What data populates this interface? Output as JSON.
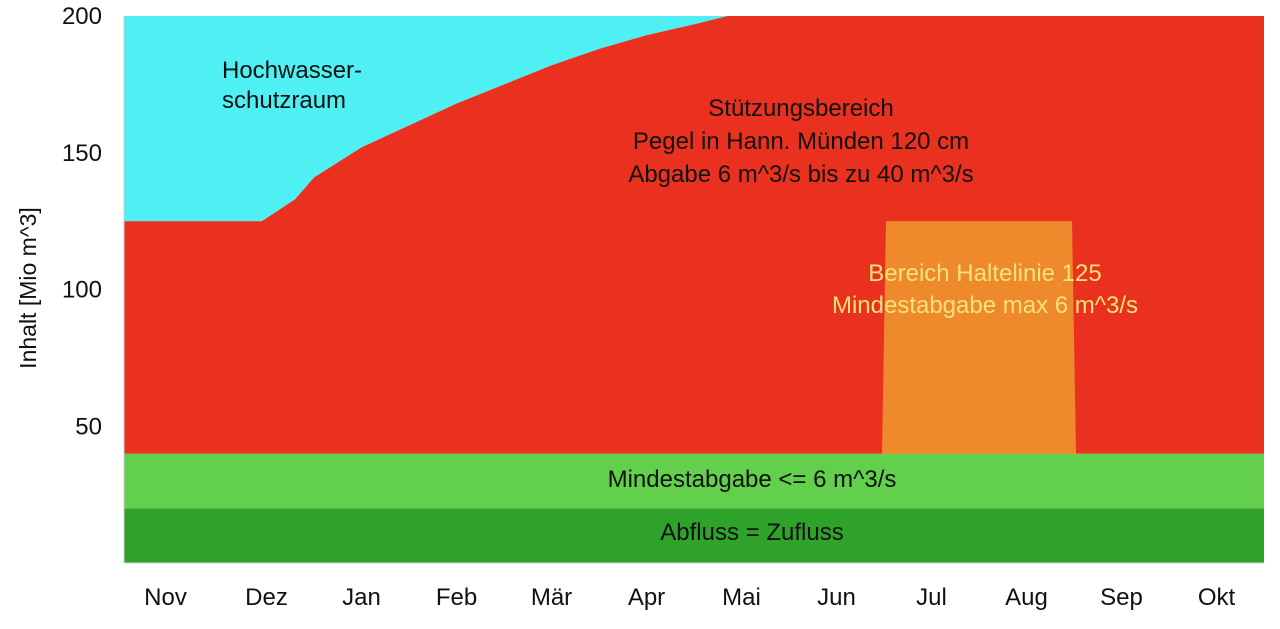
{
  "chart_data": {
    "type": "area",
    "ylabel": "Inhalt [Mio m^3]",
    "xlabel": "",
    "ylim": [
      0,
      200
    ],
    "y_ticks": [
      "50",
      "100",
      "150",
      "200"
    ],
    "categories": [
      "Nov",
      "Dez",
      "Jan",
      "Feb",
      "Mär",
      "Apr",
      "Mai",
      "Jun",
      "Jul",
      "Aug",
      "Sep",
      "Okt"
    ],
    "grid": false,
    "zones": [
      {
        "name": "Abfluss = Zufluss",
        "color": "#2fa22a",
        "lower": 0,
        "upper": 20,
        "label": [
          "Abfluss = Zufluss"
        ],
        "label_color": "#111111"
      },
      {
        "name": "Mindestabgabe",
        "color": "#62d04c",
        "lower": 20,
        "upper": 40,
        "label": [
          "Mindestabgabe <= 6 m^3/s"
        ],
        "label_color": "#111111"
      },
      {
        "name": "Stützungsbereich",
        "color": "#ea3120",
        "lower": 40,
        "upper_curve": "hochwasser_boundary",
        "label": [
          "Stützungsbereich",
          "Pegel in Hann. Münden 120 cm",
          "Abgabe 6 m^3/s bis zu 40 m^3/s"
        ],
        "label_color": "#111111"
      },
      {
        "name": "Hochwasserschutzraum",
        "color": "#4ef0f4",
        "lower_curve": "hochwasser_boundary",
        "upper": 200,
        "label": [
          "Hochwasser-",
          "schutzraum"
        ],
        "label_color": "#111111"
      },
      {
        "name": "Bereich Haltelinie 125",
        "color": "#ee8a2c",
        "lower": 40,
        "upper": 125,
        "x_start": 7.5,
        "x_end": 9.5,
        "label": [
          "Bereich Haltelinie 125",
          "Mindestabgabe max 6 m^3/s"
        ],
        "label_color": "#f6e27a"
      }
    ],
    "hochwasser_boundary": {
      "x": [
        -0.5,
        0.5,
        0.95,
        1.3,
        1.5,
        2.0,
        2.5,
        3.0,
        3.5,
        4.0,
        4.5,
        5.0,
        5.5,
        5.85,
        11.5
      ],
      "y": [
        125,
        125,
        125,
        133,
        141,
        152,
        160,
        168,
        175,
        182,
        188,
        193,
        197,
        200,
        200
      ]
    }
  }
}
